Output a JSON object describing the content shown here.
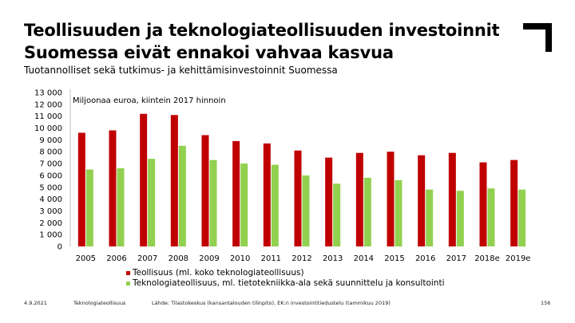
{
  "header": {
    "title_line1": "Teollisuuden ja teknologiateollisuuden investoinnit",
    "title_line2": "Suomessa eivät ennakoi vahvaa kasvua",
    "subtitle": "Tuotannolliset sekä tutkimus- ja kehittämisinvestoinnit Suomessa"
  },
  "colors": {
    "series1": "#c00000",
    "series2": "#92d050",
    "text": "#000000"
  },
  "chart_data": {
    "type": "bar",
    "unit_note": "Miljoonaa euroa, kiintein 2017 hinnoin",
    "categories": [
      "2005",
      "2006",
      "2007",
      "2008",
      "2009",
      "2010",
      "2011",
      "2012",
      "2013",
      "2014",
      "2015",
      "2016",
      "2017",
      "2018e",
      "2019e"
    ],
    "series": [
      {
        "name": "Teollisuus (ml. koko teknologiateollisuus)",
        "values": [
          9600,
          9800,
          11200,
          11100,
          9400,
          8900,
          8700,
          8100,
          7500,
          7900,
          8000,
          7700,
          7900,
          7100,
          7300
        ]
      },
      {
        "name": "Teknologiateollisuus, ml. tietotekniikka-ala sekä suunnittelu ja konsultointi",
        "values": [
          6500,
          6600,
          7400,
          8500,
          7300,
          7000,
          6900,
          6000,
          5300,
          5800,
          5600,
          4800,
          4700,
          4900,
          4800
        ]
      }
    ],
    "yticks": [
      "0",
      "1 000",
      "2 000",
      "3 000",
      "4 000",
      "5 000",
      "6 000",
      "7 000",
      "8 000",
      "9 000",
      "10 000",
      "11 000",
      "12 000",
      "13 000"
    ],
    "ylim": [
      0,
      13000
    ],
    "grid": false,
    "legend_position": "bottom"
  },
  "footer": {
    "date": "4.9.2021",
    "org": "Teknologiateollisuus",
    "source": "Lähde: Tilastokeskus (kansantalouden tilinpito), EK:n investointitiedustelu (tammikuu 2019)",
    "page": "156"
  }
}
